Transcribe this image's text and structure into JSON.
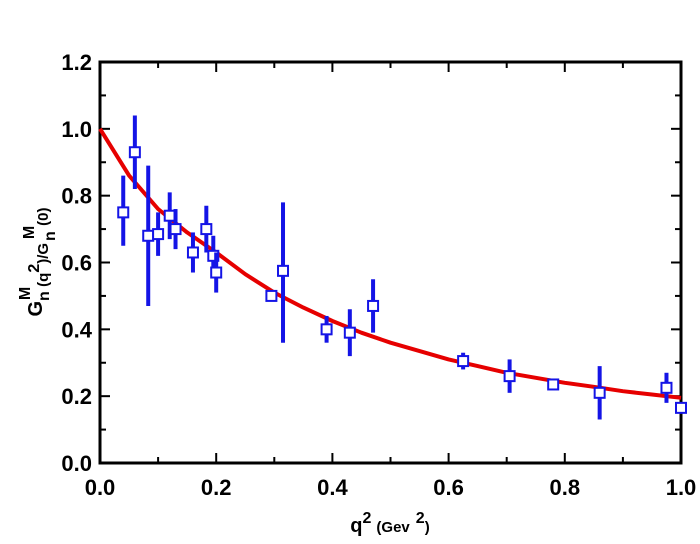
{
  "chart_data": {
    "type": "scatter",
    "title": "",
    "xlim": [
      0.0,
      1.0
    ],
    "ylim": [
      0.0,
      1.2
    ],
    "x_ticks": [
      "0.0",
      "0.2",
      "0.4",
      "0.6",
      "0.8",
      "1.0"
    ],
    "y_ticks": [
      "0.0",
      "0.2",
      "0.4",
      "0.6",
      "0.8",
      "1.0",
      "1.2"
    ],
    "xlabel": {
      "base": "q",
      "sup": "2",
      "unit_open": "(Gev",
      "unit_sup": "2",
      "unit_close": ")"
    },
    "ylabel": {
      "g1": "G",
      "g1_sub": "n",
      "g1_sup": "M",
      "mid": "(q",
      "mid_sup": "2",
      "mid_close": ")/G",
      "g2_sub": "n",
      "g2_sup": "M",
      "tail": "(0)"
    },
    "grid": false,
    "series": [
      {
        "kind": "points",
        "marker": "open-square",
        "color": "#1414e6",
        "points": [
          {
            "x": 0.04,
            "y": 0.75,
            "lo": 0.65,
            "hi": 0.86
          },
          {
            "x": 0.06,
            "y": 0.93,
            "lo": 0.82,
            "hi": 1.04
          },
          {
            "x": 0.083,
            "y": 0.68,
            "lo": 0.47,
            "hi": 0.89
          },
          {
            "x": 0.1,
            "y": 0.685,
            "lo": 0.62,
            "hi": 0.75
          },
          {
            "x": 0.12,
            "y": 0.74,
            "lo": 0.67,
            "hi": 0.81
          },
          {
            "x": 0.13,
            "y": 0.7,
            "lo": 0.64,
            "hi": 0.76
          },
          {
            "x": 0.16,
            "y": 0.63,
            "lo": 0.57,
            "hi": 0.69
          },
          {
            "x": 0.183,
            "y": 0.7,
            "lo": 0.63,
            "hi": 0.77
          },
          {
            "x": 0.195,
            "y": 0.62,
            "lo": 0.56,
            "hi": 0.68
          },
          {
            "x": 0.2,
            "y": 0.57,
            "lo": 0.51,
            "hi": 0.63
          },
          {
            "x": 0.295,
            "y": 0.5,
            "lo": 0.49,
            "hi": 0.51
          },
          {
            "x": 0.315,
            "y": 0.575,
            "lo": 0.36,
            "hi": 0.78
          },
          {
            "x": 0.39,
            "y": 0.4,
            "lo": 0.36,
            "hi": 0.44
          },
          {
            "x": 0.43,
            "y": 0.39,
            "lo": 0.32,
            "hi": 0.46
          },
          {
            "x": 0.47,
            "y": 0.47,
            "lo": 0.39,
            "hi": 0.55
          },
          {
            "x": 0.625,
            "y": 0.305,
            "lo": 0.28,
            "hi": 0.33
          },
          {
            "x": 0.705,
            "y": 0.26,
            "lo": 0.21,
            "hi": 0.31
          },
          {
            "x": 0.78,
            "y": 0.235,
            "lo": 0.225,
            "hi": 0.245
          },
          {
            "x": 0.86,
            "y": 0.21,
            "lo": 0.13,
            "hi": 0.29
          },
          {
            "x": 0.975,
            "y": 0.225,
            "lo": 0.18,
            "hi": 0.27
          },
          {
            "x": 1.0,
            "y": 0.165,
            "lo": 0.15,
            "hi": 0.18
          }
        ]
      },
      {
        "kind": "curve",
        "color": "#e60000",
        "x": [
          0.0,
          0.05,
          0.1,
          0.15,
          0.2,
          0.25,
          0.3,
          0.35,
          0.4,
          0.45,
          0.5,
          0.55,
          0.6,
          0.65,
          0.7,
          0.75,
          0.8,
          0.85,
          0.9,
          0.95,
          1.0
        ],
        "y": [
          1.0,
          0.86,
          0.76,
          0.69,
          0.63,
          0.565,
          0.51,
          0.465,
          0.425,
          0.39,
          0.36,
          0.335,
          0.31,
          0.29,
          0.27,
          0.255,
          0.24,
          0.228,
          0.215,
          0.205,
          0.195
        ]
      }
    ]
  }
}
